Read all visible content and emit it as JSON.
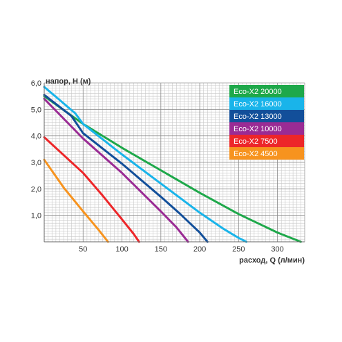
{
  "chart_data": {
    "type": "line",
    "xlabel": "расход, Q (л/мин)",
    "ylabel": "напор, H (м)",
    "xlim": [
      0,
      335
    ],
    "ylim": [
      0,
      6.0
    ],
    "x_ticks": [
      50,
      100,
      150,
      200,
      250,
      300
    ],
    "y_ticks": [
      1.0,
      2.0,
      3.0,
      4.0,
      5.0,
      6.0
    ],
    "x_tick_labels": [
      "50",
      "100",
      "150",
      "200",
      "250",
      "300"
    ],
    "y_tick_labels": [
      "1,0",
      "2,0",
      "3,0",
      "4,0",
      "5,0",
      "6,0"
    ],
    "grid": true,
    "legend_position": "top-right",
    "series": [
      {
        "name": "Eco-X2 20000",
        "color": "#1ea84a",
        "x": [
          0,
          50,
          100,
          150,
          200,
          250,
          300,
          330
        ],
        "y": [
          5.5,
          4.45,
          3.55,
          2.7,
          1.85,
          1.05,
          0.35,
          0.0
        ]
      },
      {
        "name": "Eco-X2 16000",
        "color": "#19b4ea",
        "x": [
          0,
          20,
          40,
          50,
          100,
          150,
          200,
          230,
          250,
          260
        ],
        "y": [
          5.85,
          5.35,
          4.85,
          4.45,
          3.3,
          2.2,
          1.1,
          0.5,
          0.15,
          0.0
        ]
      },
      {
        "name": "Eco-X2 13000",
        "color": "#124f9a",
        "x": [
          0,
          35,
          50,
          100,
          150,
          175,
          200,
          210
        ],
        "y": [
          5.55,
          4.75,
          4.1,
          2.95,
          1.7,
          1.05,
          0.35,
          0.0
        ]
      },
      {
        "name": "Eco-X2 10000",
        "color": "#9a2b94",
        "x": [
          0,
          50,
          100,
          150,
          170,
          185
        ],
        "y": [
          5.4,
          3.9,
          2.6,
          1.15,
          0.55,
          0.0
        ]
      },
      {
        "name": "Eco-X2 7500",
        "color": "#ed2629",
        "x": [
          0,
          50,
          75,
          100,
          115,
          122
        ],
        "y": [
          3.95,
          2.6,
          1.75,
          0.85,
          0.3,
          0.0
        ]
      },
      {
        "name": "Eco-X2 4500",
        "color": "#f7931e",
        "x": [
          0,
          25,
          50,
          70,
          82
        ],
        "y": [
          3.1,
          2.05,
          1.15,
          0.45,
          0.0
        ]
      }
    ]
  }
}
